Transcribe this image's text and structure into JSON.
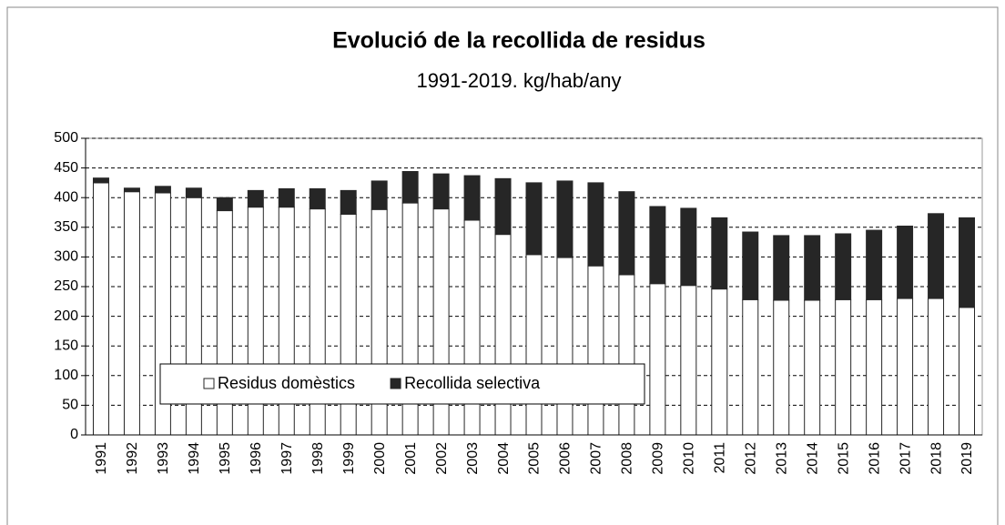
{
  "chart_data": {
    "type": "stacked_bar",
    "title": "Evolució de la recollida de residus",
    "subtitle": "1991-2019. kg/hab/any",
    "categories": [
      "1991",
      "1992",
      "1993",
      "1994",
      "1995",
      "1996",
      "1997",
      "1998",
      "1999",
      "2000",
      "2001",
      "2002",
      "2003",
      "2004",
      "2005",
      "2006",
      "2007",
      "2008",
      "2009",
      "2010",
      "2011",
      "2012",
      "2013",
      "2014",
      "2015",
      "2016",
      "2017",
      "2018",
      "2019"
    ],
    "series": [
      {
        "name": "Residus domèstics",
        "color": "#ffffff",
        "values": [
          425,
          410,
          408,
          400,
          378,
          384,
          384,
          381,
          372,
          380,
          391,
          381,
          362,
          338,
          304,
          299,
          285,
          270,
          255,
          252,
          246,
          228,
          227,
          227,
          228,
          228,
          230,
          230,
          215
        ]
      },
      {
        "name": "Recollida selectiva",
        "color": "#262626",
        "values": [
          8,
          6,
          11,
          16,
          22,
          28,
          31,
          34,
          40,
          48,
          53,
          59,
          75,
          94,
          121,
          129,
          140,
          140,
          130,
          130,
          120,
          114,
          109,
          109,
          111,
          117,
          122,
          143,
          151
        ]
      }
    ],
    "ylim": [
      0,
      500
    ],
    "yticks": [
      0,
      50,
      100,
      150,
      200,
      250,
      300,
      350,
      400,
      450,
      500
    ],
    "grid": true,
    "legend": "lower left"
  }
}
